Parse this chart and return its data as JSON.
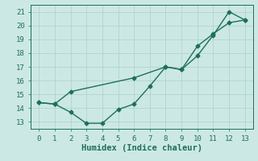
{
  "xlabel": "Humidex (Indice chaleur)",
  "background_color": "#cce8e4",
  "grid_color": "#b0d4cf",
  "line_color": "#1e6e5e",
  "xlim": [
    -0.5,
    13.5
  ],
  "ylim": [
    12.5,
    21.5
  ],
  "xticks": [
    0,
    1,
    2,
    3,
    4,
    5,
    6,
    7,
    8,
    9,
    10,
    11,
    12,
    13
  ],
  "yticks": [
    13,
    14,
    15,
    16,
    17,
    18,
    19,
    20,
    21
  ],
  "line1_x": [
    0,
    1,
    2,
    3,
    4,
    5,
    6,
    7,
    8,
    9,
    10,
    11,
    12,
    13
  ],
  "line1_y": [
    14.4,
    14.3,
    13.7,
    12.9,
    12.9,
    13.9,
    14.3,
    15.6,
    17.0,
    16.8,
    17.8,
    19.3,
    21.0,
    20.4
  ],
  "line2_x": [
    0,
    1,
    2,
    6,
    8,
    9,
    10,
    11,
    12,
    13
  ],
  "line2_y": [
    14.4,
    14.3,
    15.2,
    16.2,
    17.0,
    16.8,
    18.5,
    19.4,
    20.2,
    20.4
  ],
  "markersize": 2.5,
  "linewidth": 1.0,
  "tick_labelsize": 6.5,
  "xlabel_fontsize": 7.5
}
